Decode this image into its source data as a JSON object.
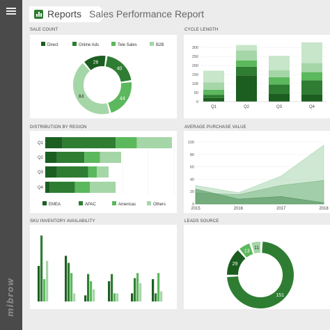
{
  "app": {
    "nav_title": "Reports",
    "page_title": "Sales Performance Report",
    "brand": "mibrow"
  },
  "colors": {
    "c1": "#1b5e20",
    "c2": "#2e7d32",
    "c3": "#5cb85c",
    "c4": "#a5d6a7",
    "c5": "#c8e6c9"
  },
  "icons": {
    "menu": "hamburger-icon",
    "reports": "bar-chart-icon"
  },
  "sections": {
    "sales_count": "SALE COUNT",
    "cycle_length": "CYCLE LENGTH",
    "distribution": "DISTRIBUTION BY REGION",
    "avg_purchase": "AVERAGE PURCHASE VALUE",
    "sku": "SKU INVENTORY AVAILABILITY",
    "leads": "LEADS SOURCE"
  },
  "chart_data": [
    {
      "id": "sale-count",
      "type": "pie",
      "donut": true,
      "legend": [
        "Direct",
        "Online Ads",
        "Tele Sales",
        "B2B"
      ],
      "legend_position": "top",
      "values": [
        26,
        40,
        44,
        84
      ]
    },
    {
      "id": "cycle-length",
      "type": "bar",
      "stacked": true,
      "categories": [
        "Q1",
        "Q2",
        "Q3",
        "Q4"
      ],
      "ylim": [
        0,
        350
      ],
      "yticks": [
        0,
        50,
        100,
        150,
        200,
        250,
        300
      ],
      "series": [
        {
          "values": [
            20,
            145,
            45,
            40
          ]
        },
        {
          "values": [
            18,
            48,
            50,
            78
          ]
        },
        {
          "values": [
            28,
            35,
            40,
            45
          ]
        },
        {
          "values": [
            40,
            55,
            38,
            50
          ]
        },
        {
          "values": [
            65,
            30,
            80,
            115
          ]
        }
      ]
    },
    {
      "id": "distribution-region",
      "type": "bar",
      "orientation": "horizontal",
      "stacked": true,
      "categories": [
        "Q1",
        "Q2",
        "Q3",
        "Q4"
      ],
      "legend": [
        "EMEA",
        "APAC",
        "Americas",
        "Others"
      ],
      "legend_position": "bottom",
      "series": [
        {
          "name": "EMEA",
          "values": [
            22,
            15,
            15,
            6
          ]
        },
        {
          "name": "APAC",
          "values": [
            68,
            35,
            40,
            32
          ]
        },
        {
          "name": "Americas",
          "values": [
            27,
            20,
            11,
            19
          ]
        },
        {
          "name": "Others",
          "values": [
            45,
            27,
            15,
            33
          ]
        }
      ]
    },
    {
      "id": "avg-purchase",
      "type": "area",
      "x": [
        2015,
        2016,
        2017,
        2018
      ],
      "ylim": [
        0,
        100
      ],
      "yticks": [
        0,
        20,
        40,
        60,
        80,
        100
      ],
      "series": [
        {
          "values": [
            24,
            8,
            12,
            2
          ]
        },
        {
          "values": [
            18,
            15,
            30,
            38
          ]
        },
        {
          "values": [
            30,
            18,
            45,
            95
          ]
        }
      ]
    },
    {
      "id": "sku-inventory",
      "type": "bar",
      "groups": [
        [
          35,
          65,
          22,
          40
        ],
        [
          45,
          38,
          28,
          8
        ],
        [
          6,
          27,
          20,
          12
        ],
        [
          20,
          27,
          8,
          8
        ],
        [
          8,
          23,
          28,
          18
        ],
        [
          22,
          8,
          28,
          10
        ]
      ],
      "ylim": [
        0,
        70
      ]
    },
    {
      "id": "leads-source",
      "type": "pie",
      "donut": true,
      "values": [
        151,
        29,
        13,
        11
      ]
    }
  ]
}
